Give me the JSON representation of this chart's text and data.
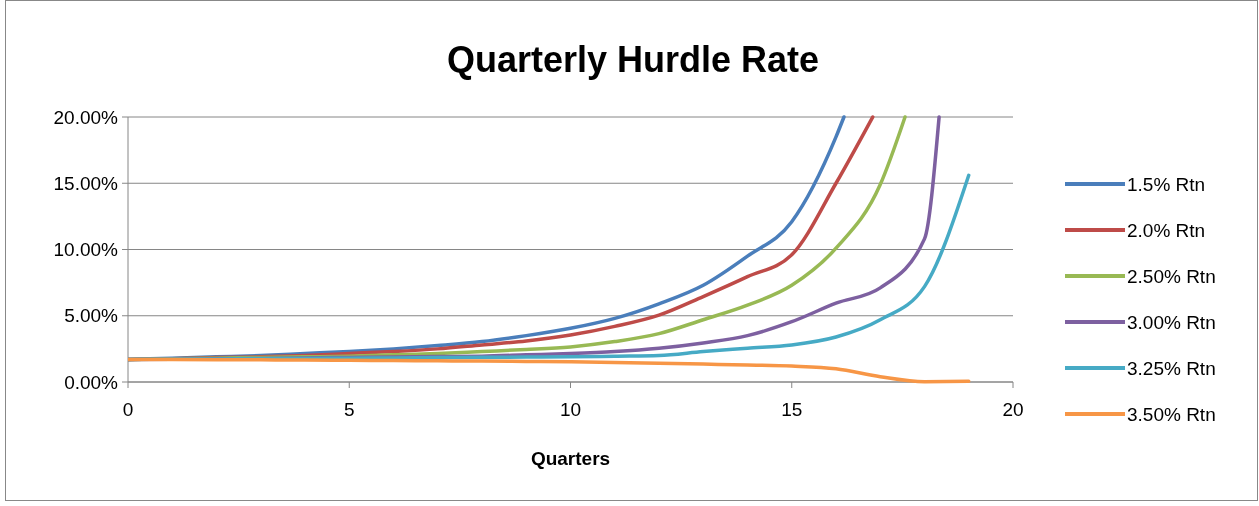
{
  "chart_data": {
    "type": "line",
    "title": "Quarterly Hurdle Rate",
    "xlabel": "Quarters",
    "xlim": [
      0,
      20
    ],
    "xticks": [
      0,
      5,
      10,
      15,
      20
    ],
    "ylim": [
      0,
      20
    ],
    "yticks": [
      {
        "value": 0,
        "label": "0.00%"
      },
      {
        "value": 5,
        "label": "5.00%"
      },
      {
        "value": 10,
        "label": "10.00%"
      },
      {
        "value": 15,
        "label": "15.00%"
      },
      {
        "value": 20,
        "label": "20.00%"
      }
    ],
    "grid": "y",
    "legend": "right",
    "marker": "none",
    "line_style": "solid",
    "series": [
      {
        "name": "1.5% Rtn",
        "color": "#4a7ebb",
        "x": [
          0,
          1,
          2,
          3,
          4,
          5,
          6,
          7,
          8,
          9,
          10,
          11,
          12,
          13,
          14,
          15,
          16,
          16.18
        ],
        "values": [
          1.7,
          1.8,
          1.9,
          2.0,
          2.15,
          2.3,
          2.5,
          2.75,
          3.05,
          3.5,
          4.05,
          4.8,
          5.9,
          7.3,
          9.5,
          12.1,
          18.5,
          20
        ]
      },
      {
        "name": "2.0% Rtn",
        "color": "#be4b48",
        "x": [
          0,
          1,
          2,
          3,
          4,
          5,
          6,
          7,
          8,
          9,
          10,
          11,
          12,
          13,
          14,
          15,
          16,
          16.83
        ],
        "values": [
          1.7,
          1.75,
          1.85,
          1.9,
          2.0,
          2.15,
          2.3,
          2.5,
          2.8,
          3.1,
          3.55,
          4.2,
          5.05,
          6.45,
          7.95,
          9.6,
          15.0,
          20
        ]
      },
      {
        "name": "2.50% Rtn",
        "color": "#98b954",
        "x": [
          0,
          1,
          2,
          3,
          4,
          5,
          6,
          7,
          8,
          9,
          10,
          11,
          12,
          13,
          14,
          15,
          16,
          17,
          17.56
        ],
        "values": [
          1.7,
          1.75,
          1.8,
          1.85,
          1.9,
          1.95,
          2.05,
          2.15,
          2.3,
          2.45,
          2.65,
          3.05,
          3.65,
          4.7,
          5.8,
          7.3,
          10.1,
          14.9,
          20
        ]
      },
      {
        "name": "3.00% Rtn",
        "color": "#7d60a0",
        "x": [
          0,
          1,
          2,
          3,
          4,
          5,
          6,
          7,
          8,
          9,
          10,
          11,
          12,
          13,
          14,
          15,
          16,
          17,
          18,
          18.33
        ],
        "values": [
          1.7,
          1.72,
          1.75,
          1.78,
          1.82,
          1.85,
          1.88,
          1.92,
          1.95,
          2.05,
          2.15,
          2.3,
          2.55,
          2.95,
          3.5,
          4.55,
          5.95,
          7.1,
          10.8,
          20
        ]
      },
      {
        "name": "3.25% Rtn",
        "color": "#46aac5",
        "x": [
          0,
          1,
          2,
          3,
          4,
          5,
          6,
          7,
          8,
          9,
          10,
          11,
          12,
          13,
          14,
          15,
          16,
          17,
          18,
          19
        ],
        "values": [
          1.7,
          1.72,
          1.74,
          1.76,
          1.78,
          1.8,
          1.82,
          1.84,
          1.86,
          1.88,
          1.9,
          1.95,
          2.0,
          2.3,
          2.55,
          2.8,
          3.4,
          4.7,
          7.2,
          15.6
        ]
      },
      {
        "name": "3.50% Rtn",
        "color": "#f79646",
        "x": [
          0,
          1,
          2,
          3,
          4,
          5,
          6,
          7,
          8,
          9,
          10,
          11,
          12,
          13,
          14,
          15,
          16,
          17,
          18,
          19
        ],
        "values": [
          1.7,
          1.69,
          1.68,
          1.67,
          1.66,
          1.64,
          1.62,
          1.6,
          1.58,
          1.55,
          1.52,
          1.48,
          1.42,
          1.35,
          1.28,
          1.2,
          1.0,
          0.4,
          0.02,
          0.05
        ]
      }
    ]
  }
}
